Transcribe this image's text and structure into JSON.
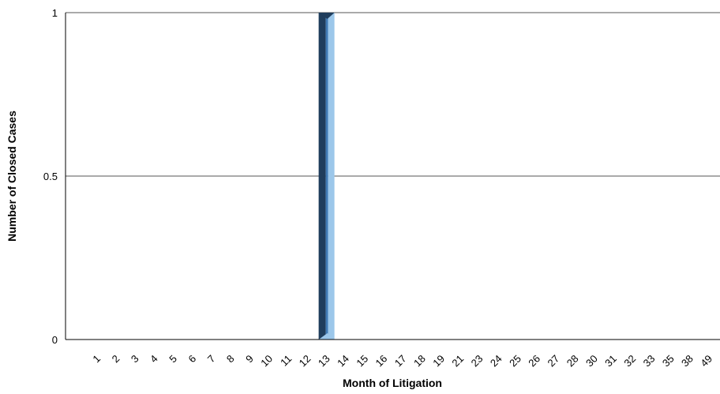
{
  "chart_data": {
    "type": "bar",
    "title": "",
    "xlabel": "Month of Litigation",
    "ylabel": "Number of Closed Cases",
    "categories": [
      "1",
      "2",
      "3",
      "4",
      "5",
      "6",
      "7",
      "8",
      "9",
      "10",
      "11",
      "12",
      "13",
      "14",
      "15",
      "16",
      "17",
      "18",
      "19",
      "21",
      "23",
      "24",
      "25",
      "26",
      "27",
      "28",
      "30",
      "31",
      "32",
      "33",
      "35",
      "38",
      "49"
    ],
    "series": [
      {
        "values": [
          0,
          0,
          0,
          0,
          0,
          0,
          0,
          0,
          0,
          0,
          0,
          0,
          1,
          0,
          0,
          0,
          0,
          0,
          0,
          0,
          0,
          0,
          0,
          0,
          0,
          0,
          0,
          0,
          0,
          0,
          0,
          0,
          0
        ]
      }
    ],
    "ylim": [
      0,
      1
    ],
    "yticks": [
      "0",
      "0.5",
      "1"
    ],
    "grid": true,
    "legend": "none",
    "colors": {
      "bar_dark": "#1f3d5c",
      "bar_mid": "#3f7ab5",
      "bar_light": "#9cc7ea",
      "grid": "#555555",
      "axis": "#000000"
    }
  }
}
